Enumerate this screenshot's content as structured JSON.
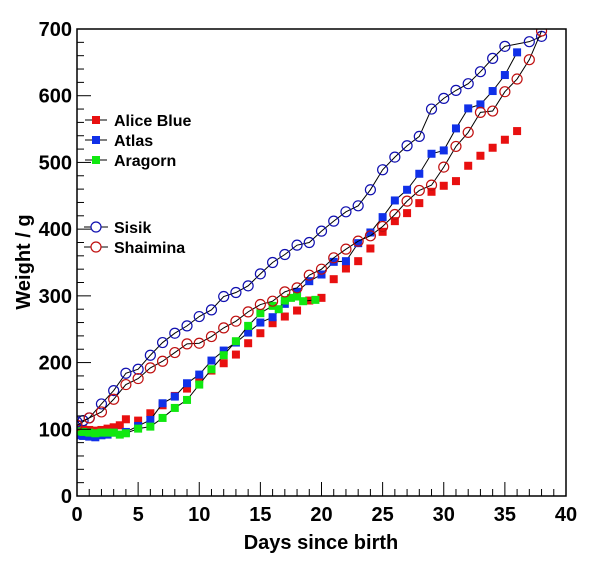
{
  "chart_data": {
    "type": "line",
    "xlabel": "Days since birth",
    "ylabel": "Weight / g",
    "xlim": [
      0,
      40
    ],
    "ylim": [
      0,
      700
    ],
    "x_ticks": [
      0,
      5,
      10,
      15,
      20,
      25,
      30,
      35,
      40
    ],
    "y_ticks": [
      0,
      100,
      200,
      300,
      400,
      500,
      600,
      700
    ],
    "grid": false,
    "legend_position": "left",
    "series": [
      {
        "name": "Alice Blue",
        "color": "#e81010",
        "marker": "square-filled",
        "line": false,
        "points": [
          [
            0,
            101
          ],
          [
            0.5,
            100
          ],
          [
            1,
            99
          ],
          [
            1.5,
            98
          ],
          [
            2,
            99
          ],
          [
            2.5,
            101
          ],
          [
            3,
            103
          ],
          [
            3.5,
            106
          ],
          [
            4,
            115
          ],
          [
            5,
            113
          ],
          [
            6,
            124
          ],
          [
            7,
            136
          ],
          [
            8,
            150
          ],
          [
            9,
            161
          ],
          [
            10,
            176
          ],
          [
            11,
            188
          ],
          [
            12,
            199
          ],
          [
            13,
            212
          ],
          [
            14,
            229
          ],
          [
            15,
            244
          ],
          [
            16,
            259
          ],
          [
            17,
            269
          ],
          [
            18,
            278
          ],
          [
            19,
            293
          ],
          [
            20,
            297
          ],
          [
            21,
            325
          ],
          [
            22,
            341
          ],
          [
            23,
            352
          ],
          [
            24,
            371
          ],
          [
            25,
            396
          ],
          [
            26,
            412
          ],
          [
            27,
            424
          ],
          [
            28,
            439
          ],
          [
            29,
            456
          ],
          [
            30,
            465
          ],
          [
            31,
            472
          ],
          [
            32,
            495
          ],
          [
            33,
            510
          ],
          [
            34,
            522
          ],
          [
            35,
            534
          ],
          [
            36,
            547
          ]
        ]
      },
      {
        "name": "Atlas",
        "color": "#1030e8",
        "marker": "square-filled",
        "line": true,
        "points": [
          [
            0,
            91
          ],
          [
            0.5,
            90
          ],
          [
            1,
            89
          ],
          [
            1.5,
            88
          ],
          [
            2,
            91
          ],
          [
            2.5,
            92
          ],
          [
            3,
            95
          ],
          [
            4,
            96
          ],
          [
            5,
            105
          ],
          [
            6,
            114
          ],
          [
            7,
            139
          ],
          [
            8,
            149
          ],
          [
            9,
            169
          ],
          [
            10,
            182
          ],
          [
            11,
            203
          ],
          [
            12,
            218
          ],
          [
            13,
            230
          ],
          [
            14,
            245
          ],
          [
            15,
            260
          ],
          [
            16,
            268
          ],
          [
            17,
            288
          ],
          [
            18,
            306
          ],
          [
            19,
            322
          ],
          [
            20,
            332
          ],
          [
            21,
            351
          ],
          [
            22,
            352
          ],
          [
            23,
            379
          ],
          [
            24,
            395
          ],
          [
            25,
            418
          ],
          [
            26,
            443
          ],
          [
            27,
            459
          ],
          [
            28,
            483
          ],
          [
            29,
            513
          ],
          [
            30,
            518
          ],
          [
            31,
            551
          ],
          [
            32,
            581
          ],
          [
            33,
            587
          ],
          [
            34,
            607
          ],
          [
            35,
            631
          ],
          [
            36,
            665
          ]
        ]
      },
      {
        "name": "Aragorn",
        "color": "#10e810",
        "marker": "square-filled",
        "line": true,
        "points": [
          [
            0,
            97
          ],
          [
            0.5,
            96
          ],
          [
            1,
            95
          ],
          [
            1.5,
            94
          ],
          [
            2,
            95
          ],
          [
            2.5,
            95
          ],
          [
            3,
            95
          ],
          [
            3.5,
            92
          ],
          [
            4,
            94
          ],
          [
            5,
            101
          ],
          [
            6,
            104
          ],
          [
            7,
            117
          ],
          [
            8,
            132
          ],
          [
            9,
            144
          ],
          [
            10,
            167
          ],
          [
            11,
            190
          ],
          [
            12,
            211
          ],
          [
            13,
            232
          ],
          [
            14,
            255
          ],
          [
            15,
            274
          ],
          [
            16,
            285
          ],
          [
            16.5,
            280
          ],
          [
            17,
            293
          ],
          [
            17.5,
            297
          ],
          [
            18,
            299
          ],
          [
            18.5,
            292
          ],
          [
            19.5,
            294
          ]
        ]
      },
      {
        "name": "Sisik",
        "color": "#1010b0",
        "marker": "circle-open",
        "line": true,
        "points": [
          [
            0,
            111
          ],
          [
            0.5,
            113
          ],
          [
            1,
            117
          ],
          [
            2,
            138
          ],
          [
            3,
            158
          ],
          [
            4,
            184
          ],
          [
            5,
            190
          ],
          [
            6,
            211
          ],
          [
            7,
            230
          ],
          [
            8,
            244
          ],
          [
            9,
            255
          ],
          [
            10,
            269
          ],
          [
            11,
            279
          ],
          [
            12,
            299
          ],
          [
            13,
            305
          ],
          [
            14,
            315
          ],
          [
            15,
            333
          ],
          [
            16,
            350
          ],
          [
            17,
            362
          ],
          [
            18,
            376
          ],
          [
            19,
            380
          ],
          [
            20,
            397
          ],
          [
            21,
            412
          ],
          [
            22,
            426
          ],
          [
            23,
            435
          ],
          [
            24,
            459
          ],
          [
            25,
            489
          ],
          [
            26,
            508
          ],
          [
            27,
            525
          ],
          [
            28,
            539
          ],
          [
            29,
            580
          ],
          [
            30,
            596
          ],
          [
            31,
            608
          ],
          [
            32,
            618
          ],
          [
            33,
            636
          ],
          [
            34,
            656
          ],
          [
            35,
            674
          ],
          [
            37,
            681
          ],
          [
            38,
            689
          ]
        ]
      },
      {
        "name": "Shaimina",
        "color": "#c01010",
        "marker": "circle-open",
        "line": true,
        "points": [
          [
            0,
            106
          ],
          [
            1,
            117
          ],
          [
            2,
            126
          ],
          [
            3,
            145
          ],
          [
            4,
            167
          ],
          [
            5,
            176
          ],
          [
            6,
            192
          ],
          [
            7,
            202
          ],
          [
            8,
            215
          ],
          [
            9,
            228
          ],
          [
            10,
            229
          ],
          [
            11,
            239
          ],
          [
            12,
            252
          ],
          [
            13,
            262
          ],
          [
            14,
            276
          ],
          [
            15,
            287
          ],
          [
            16,
            292
          ],
          [
            17,
            306
          ],
          [
            18,
            312
          ],
          [
            19,
            331
          ],
          [
            20,
            340
          ],
          [
            21,
            357
          ],
          [
            22,
            370
          ],
          [
            23,
            382
          ],
          [
            24,
            390
          ],
          [
            25,
            404
          ],
          [
            26,
            422
          ],
          [
            27,
            442
          ],
          [
            28,
            458
          ],
          [
            29,
            466
          ],
          [
            30,
            493
          ],
          [
            31,
            524
          ],
          [
            32,
            545
          ],
          [
            33,
            575
          ],
          [
            34,
            577
          ],
          [
            35,
            606
          ],
          [
            36,
            625
          ],
          [
            37,
            654
          ],
          [
            38,
            697
          ]
        ]
      }
    ]
  }
}
